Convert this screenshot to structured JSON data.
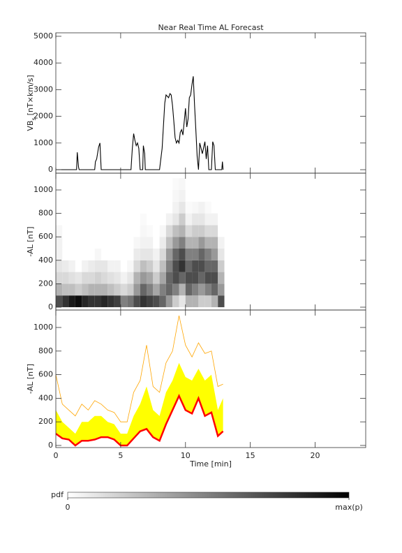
{
  "chart_data": [
    {
      "type": "line",
      "title": "Near Real Time AL Forecast",
      "ylabel": "VB",
      "ylabel_sub": "s",
      "ylabel_unit": "[nT×km/s]",
      "ylim": [
        -130,
        5130
      ],
      "yticks": [
        0,
        1000,
        2000,
        3000,
        4000,
        5000
      ],
      "color": "#000000",
      "x": [
        0,
        1.6,
        1.65,
        1.75,
        1.8,
        3.0,
        3.05,
        3.15,
        3.3,
        3.4,
        3.5,
        5.8,
        5.9,
        6.0,
        6.1,
        6.2,
        6.3,
        6.4,
        6.5,
        6.7,
        6.75,
        6.85,
        6.9,
        8.0,
        8.2,
        8.4,
        8.5,
        8.7,
        8.8,
        8.9,
        9.0,
        9.1,
        9.2,
        9.3,
        9.4,
        9.5,
        9.6,
        9.7,
        9.8,
        10.0,
        10.1,
        10.2,
        10.3,
        10.4,
        10.5,
        10.6,
        10.7,
        10.8,
        10.9,
        11.0,
        11.1,
        11.2,
        11.3,
        11.5,
        11.6,
        11.7,
        11.8,
        12.0,
        12.1,
        12.2,
        12.3,
        12.8,
        12.85,
        12.9
      ],
      "values": [
        0,
        0,
        650,
        100,
        0,
        0,
        300,
        400,
        850,
        1000,
        0,
        0,
        800,
        1350,
        1100,
        900,
        1000,
        800,
        0,
        0,
        900,
        600,
        0,
        0,
        800,
        2500,
        2800,
        2700,
        2850,
        2800,
        2400,
        1800,
        1200,
        1000,
        1100,
        1000,
        1400,
        1500,
        1300,
        2300,
        1600,
        1900,
        2700,
        2800,
        3200,
        3500,
        2400,
        1500,
        500,
        0,
        1000,
        800,
        600,
        1050,
        400,
        900,
        0,
        0,
        1050,
        900,
        0,
        0,
        300,
        0
      ]
    },
    {
      "type": "heatmap",
      "ylabel": "-AL [nT]",
      "ylim": [
        -24,
        1143
      ],
      "yticks": [
        0,
        200,
        400,
        600,
        800,
        1000
      ],
      "x_bins": [
        0,
        0.5,
        1,
        1.5,
        2,
        2.5,
        3,
        3.5,
        4,
        4.5,
        5,
        5.5,
        6,
        6.5,
        7,
        7.5,
        8,
        8.5,
        9,
        9.5,
        10,
        10.5,
        11,
        11.5,
        12,
        12.5,
        13
      ],
      "y_bins": [
        0,
        100,
        200,
        300,
        400,
        500,
        600,
        700,
        800,
        900,
        1000,
        1100
      ],
      "clim": [
        0,
        1
      ],
      "values": [
        [
          0.7,
          0.3,
          0.15,
          0.1,
          0.05,
          0.05,
          0.03,
          0,
          0,
          0,
          0
        ],
        [
          0.8,
          0.25,
          0.15,
          0.08,
          0,
          0,
          0,
          0,
          0,
          0,
          0
        ],
        [
          0.9,
          0.25,
          0.12,
          0.05,
          0,
          0,
          0,
          0,
          0,
          0,
          0
        ],
        [
          0.95,
          0.2,
          0.1,
          0,
          0,
          0,
          0,
          0,
          0,
          0,
          0
        ],
        [
          0.85,
          0.25,
          0.15,
          0.05,
          0,
          0,
          0,
          0,
          0,
          0,
          0
        ],
        [
          0.8,
          0.3,
          0.15,
          0.08,
          0,
          0,
          0,
          0,
          0,
          0,
          0
        ],
        [
          0.8,
          0.3,
          0.18,
          0.1,
          0.03,
          0,
          0,
          0,
          0,
          0,
          0
        ],
        [
          0.85,
          0.3,
          0.15,
          0.1,
          0,
          0,
          0,
          0,
          0,
          0,
          0
        ],
        [
          0.8,
          0.25,
          0.12,
          0.05,
          0,
          0,
          0,
          0,
          0,
          0,
          0
        ],
        [
          0.75,
          0.2,
          0.1,
          0.05,
          0,
          0,
          0,
          0,
          0,
          0,
          0
        ],
        [
          0.5,
          0.15,
          0.05,
          0,
          0,
          0,
          0,
          0,
          0,
          0,
          0
        ],
        [
          0.55,
          0.2,
          0.1,
          0.03,
          0,
          0,
          0,
          0,
          0,
          0,
          0
        ],
        [
          0.7,
          0.4,
          0.3,
          0.15,
          0.08,
          0.03,
          0,
          0,
          0,
          0,
          0
        ],
        [
          0.8,
          0.6,
          0.4,
          0.25,
          0.1,
          0.05,
          0.03,
          0.02,
          0,
          0,
          0
        ],
        [
          0.75,
          0.5,
          0.35,
          0.2,
          0.1,
          0.05,
          0.02,
          0,
          0,
          0,
          0
        ],
        [
          0.7,
          0.35,
          0.2,
          0.1,
          0.05,
          0,
          0,
          0,
          0,
          0,
          0
        ],
        [
          0.6,
          0.5,
          0.35,
          0.25,
          0.15,
          0.08,
          0.03,
          0,
          0,
          0,
          0
        ],
        [
          0.4,
          0.6,
          0.6,
          0.5,
          0.4,
          0.25,
          0.15,
          0.05,
          0,
          0,
          0
        ],
        [
          0.2,
          0.5,
          0.7,
          0.7,
          0.6,
          0.4,
          0.25,
          0.1,
          0.05,
          0.03,
          0.02
        ],
        [
          0.1,
          0.3,
          0.6,
          0.8,
          0.7,
          0.5,
          0.3,
          0.2,
          0.1,
          0.05,
          0.03
        ],
        [
          0.3,
          0.6,
          0.7,
          0.6,
          0.5,
          0.3,
          0.15,
          0.05,
          0.02,
          0,
          0
        ],
        [
          0.3,
          0.5,
          0.7,
          0.7,
          0.5,
          0.3,
          0.2,
          0.1,
          0.03,
          0,
          0
        ],
        [
          0.2,
          0.4,
          0.6,
          0.7,
          0.6,
          0.4,
          0.2,
          0.1,
          0.05,
          0,
          0
        ],
        [
          0.2,
          0.5,
          0.7,
          0.6,
          0.5,
          0.3,
          0.15,
          0.05,
          0.02,
          0,
          0
        ],
        [
          0.3,
          0.6,
          0.7,
          0.6,
          0.4,
          0.3,
          0.15,
          0.05,
          0,
          0,
          0
        ],
        [
          0.7,
          0.4,
          0.3,
          0.2,
          0.1,
          0.05,
          0,
          0,
          0,
          0,
          0
        ]
      ],
      "colorbar": {
        "label": "pdf",
        "ticks": [
          0,
          {
            "value": 1,
            "label": "max(p)"
          }
        ]
      }
    },
    {
      "type": "band",
      "ylabel": "-AL [nT]",
      "xlabel": "Time [min]",
      "xlim": [
        0,
        23.9
      ],
      "xticks": [
        0,
        5,
        10,
        15,
        20
      ],
      "ylim": [
        -18,
        1148
      ],
      "yticks": [
        0,
        200,
        400,
        600,
        800,
        1000
      ],
      "x": [
        0,
        0.5,
        1,
        1.5,
        2,
        2.5,
        3,
        3.5,
        4,
        4.5,
        5,
        5.5,
        6,
        6.5,
        7,
        7.5,
        8,
        8.5,
        9,
        9.5,
        10,
        10.5,
        11,
        11.5,
        12,
        12.5,
        12.9
      ],
      "series": [
        {
          "color": "#ffa500",
          "width": 0.8,
          "values": [
            600,
            350,
            300,
            250,
            350,
            300,
            380,
            350,
            300,
            280,
            200,
            200,
            450,
            550,
            850,
            500,
            450,
            700,
            800,
            1100,
            850,
            750,
            870,
            780,
            800,
            500,
            520
          ]
        },
        {
          "color": "#ffff00",
          "fill": true,
          "values": [
            300,
            200,
            150,
            100,
            200,
            200,
            250,
            250,
            200,
            180,
            100,
            100,
            250,
            350,
            500,
            300,
            250,
            450,
            550,
            700,
            580,
            550,
            650,
            550,
            600,
            300,
            400
          ]
        },
        {
          "color": "#ff0000",
          "width": 2.5,
          "values": [
            100,
            60,
            50,
            0,
            40,
            40,
            50,
            70,
            70,
            50,
            0,
            0,
            60,
            120,
            140,
            70,
            40,
            180,
            300,
            420,
            300,
            270,
            400,
            250,
            280,
            80,
            120
          ]
        }
      ]
    }
  ]
}
